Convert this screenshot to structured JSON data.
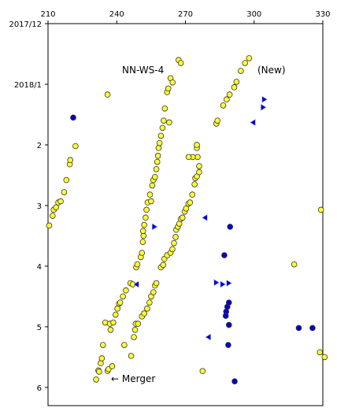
{
  "chart_data": {
    "type": "scatter",
    "title": "NN-WS-4",
    "annotations": {
      "new": "(New)",
      "merger": "← Merger"
    },
    "x_axis": {
      "ticks": [
        210,
        240,
        270,
        300,
        330
      ],
      "tick_labels": [
        "210",
        "240",
        "270",
        "300",
        "330"
      ],
      "range": [
        210,
        330
      ]
    },
    "y_axis": {
      "ticks": [
        0,
        1,
        2,
        3,
        4,
        5,
        6
      ],
      "tick_labels": [
        "2017/12",
        "2018/1",
        "2",
        "3",
        "4",
        "5",
        "6"
      ],
      "range": [
        0,
        6.3
      ],
      "inverted": true
    },
    "colors": {
      "yellow": "#ffff33",
      "blue": "#0000cc",
      "outline": "#333333"
    },
    "series": [
      {
        "marker": "circle",
        "color": "yellow",
        "points": [
          [
            210.5,
            3.33
          ],
          [
            212,
            3.17
          ],
          [
            212.5,
            3.07
          ],
          [
            213.5,
            3.03
          ],
          [
            214.5,
            2.95
          ],
          [
            215.5,
            2.93
          ],
          [
            217,
            2.78
          ],
          [
            218,
            2.58
          ],
          [
            219.5,
            2.32
          ],
          [
            219.7,
            2.25
          ],
          [
            222,
            2.02
          ],
          [
            236,
            1.17
          ],
          [
            231,
            5.87
          ],
          [
            232,
            5.72
          ],
          [
            232.3,
            5.74
          ],
          [
            233,
            5.6
          ],
          [
            233.5,
            5.52
          ],
          [
            234,
            5.3
          ],
          [
            235,
            4.93
          ],
          [
            236,
            5.73
          ],
          [
            236.4,
            5.7
          ],
          [
            237,
            4.95
          ],
          [
            237.3,
            5.05
          ],
          [
            238,
            5.65
          ],
          [
            238.5,
            4.93
          ],
          [
            239.5,
            4.8
          ],
          [
            240.3,
            4.7
          ],
          [
            241,
            4.62
          ],
          [
            241.5,
            4.6
          ],
          [
            242.7,
            4.5
          ],
          [
            244,
            4.4
          ],
          [
            246,
            4.28
          ],
          [
            247,
            4.3
          ],
          [
            243.3,
            5.3
          ],
          [
            248.5,
            4.02
          ],
          [
            249,
            3.97
          ],
          [
            250.5,
            3.85
          ],
          [
            251,
            3.78
          ],
          [
            251.4,
            3.6
          ],
          [
            251.7,
            3.5
          ],
          [
            251.5,
            3.42
          ],
          [
            252,
            3.32
          ],
          [
            252.6,
            3.2
          ],
          [
            253,
            3.07
          ],
          [
            253.5,
            2.95
          ],
          [
            255,
            2.93
          ],
          [
            254.5,
            2.82
          ],
          [
            255.5,
            2.67
          ],
          [
            256,
            2.58
          ],
          [
            256.7,
            2.53
          ],
          [
            257.3,
            2.4
          ],
          [
            257.7,
            2.28
          ],
          [
            258,
            2.18
          ],
          [
            258.3,
            2.05
          ],
          [
            258.7,
            1.97
          ],
          [
            259.3,
            1.85
          ],
          [
            260,
            1.72
          ],
          [
            260.5,
            1.6
          ],
          [
            261,
            1.4
          ],
          [
            262,
            1.13
          ],
          [
            262.5,
            1.07
          ],
          [
            263.5,
            0.9
          ],
          [
            264.4,
            0.97
          ],
          [
            267,
            0.6
          ],
          [
            268,
            0.65
          ],
          [
            246.3,
            5.48
          ],
          [
            247.5,
            5.17
          ],
          [
            248,
            5.05
          ],
          [
            248.3,
            4.95
          ],
          [
            249.3,
            4.95
          ],
          [
            251,
            4.83
          ],
          [
            252,
            4.78
          ],
          [
            253.3,
            4.7
          ],
          [
            254.3,
            4.6
          ],
          [
            255,
            4.5
          ],
          [
            256,
            4.43
          ],
          [
            256.7,
            4.32
          ],
          [
            257.3,
            4.28
          ],
          [
            259.3,
            4.02
          ],
          [
            260.3,
            3.98
          ],
          [
            260.8,
            3.88
          ],
          [
            262,
            3.82
          ],
          [
            263.5,
            3.78
          ],
          [
            264.3,
            3.72
          ],
          [
            265,
            3.62
          ],
          [
            265.7,
            3.52
          ],
          [
            266,
            3.4
          ],
          [
            266.7,
            3.35
          ],
          [
            267.3,
            3.3
          ],
          [
            268,
            3.22
          ],
          [
            268.7,
            3.2
          ],
          [
            269.7,
            3.1
          ],
          [
            270.3,
            3.05
          ],
          [
            271.3,
            2.97
          ],
          [
            272,
            2.95
          ],
          [
            273,
            2.82
          ],
          [
            274,
            2.65
          ],
          [
            274.3,
            2.55
          ],
          [
            275,
            2.52
          ],
          [
            276,
            2.45
          ],
          [
            276,
            2.35
          ],
          [
            275.3,
            2.2
          ],
          [
            275,
            2.05
          ],
          [
            275,
            2.0
          ],
          [
            273.2,
            2.2
          ],
          [
            271.4,
            2.2
          ],
          [
            283.5,
            1.65
          ],
          [
            284,
            1.6
          ],
          [
            286.5,
            1.35
          ],
          [
            288,
            1.25
          ],
          [
            289.3,
            1.17
          ],
          [
            291.3,
            1.05
          ],
          [
            292.3,
            0.96
          ],
          [
            294.2,
            0.78
          ],
          [
            296,
            0.65
          ],
          [
            297.8,
            0.57
          ],
          [
            277.5,
            5.73
          ],
          [
            317.5,
            3.97
          ],
          [
            329.2,
            3.07
          ],
          [
            328.7,
            5.42
          ],
          [
            330.8,
            5.5
          ],
          [
            262.9,
            1.63
          ]
        ]
      },
      {
        "marker": "circle",
        "color": "blue",
        "points": [
          [
            221,
            1.55
          ],
          [
            289.5,
            3.35
          ],
          [
            287,
            3.82
          ],
          [
            288.3,
            4.67
          ],
          [
            289,
            4.6
          ],
          [
            287.8,
            4.75
          ],
          [
            287.6,
            4.82
          ],
          [
            289,
            4.97
          ],
          [
            288.7,
            5.3
          ],
          [
            291.5,
            5.9
          ],
          [
            319.5,
            5.02
          ],
          [
            325.5,
            5.02
          ]
        ]
      },
      {
        "marker": "triangle-right",
        "color": "blue",
        "points": [
          [
            304.5,
            1.25
          ],
          [
            304,
            1.38
          ],
          [
            256.5,
            3.35
          ],
          [
            283.5,
            4.27
          ],
          [
            286.3,
            4.3
          ],
          [
            289,
            4.28
          ]
        ]
      },
      {
        "marker": "triangle-left",
        "color": "blue",
        "points": [
          [
            299.5,
            1.63
          ],
          [
            278.5,
            3.2
          ],
          [
            248.6,
            4.3
          ],
          [
            280,
            5.17
          ]
        ]
      }
    ]
  }
}
